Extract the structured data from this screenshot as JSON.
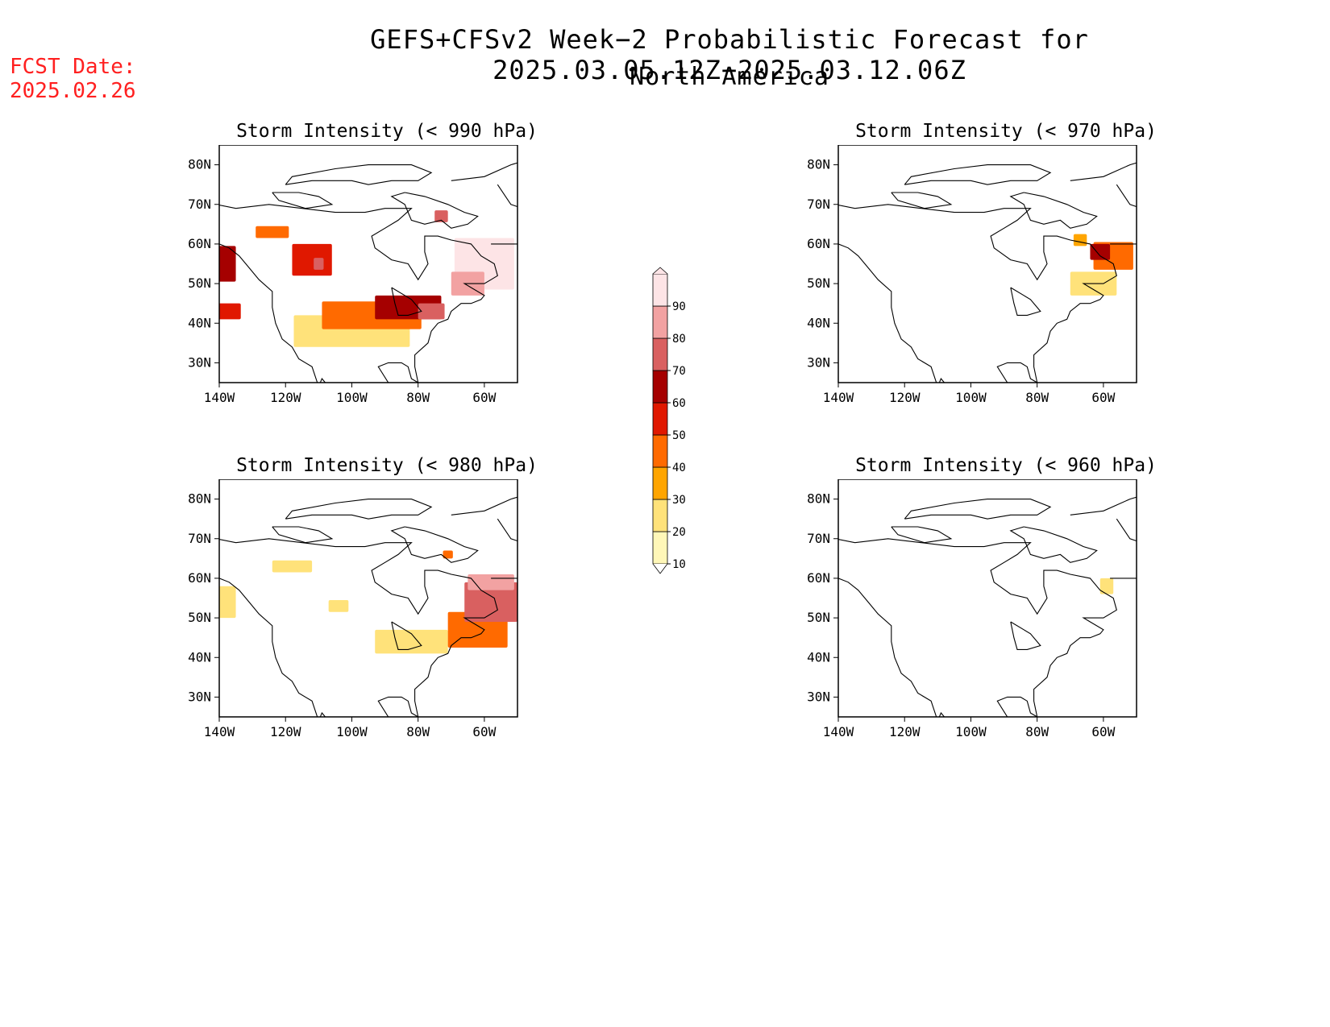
{
  "header": {
    "title": "GEFS+CFSv2 Week−2 Probabilistic Forecast for 2025.03.05.12Z−2025.03.12.06Z",
    "region": "North America",
    "fcst_label": "FCST Date:",
    "fcst_date": "2025.02.26"
  },
  "axes": {
    "lat_labels": [
      "80N",
      "70N",
      "60N",
      "50N",
      "40N",
      "30N"
    ],
    "lat_values": [
      80,
      70,
      60,
      50,
      40,
      30
    ],
    "lon_labels": [
      "140W",
      "120W",
      "100W",
      "80W",
      "60W"
    ],
    "lon_values": [
      -140,
      -120,
      -100,
      -80,
      -60
    ],
    "lon_range": [
      -140,
      -50
    ],
    "lat_range": [
      25,
      85
    ]
  },
  "colorbar": {
    "levels": [
      "10",
      "20",
      "30",
      "40",
      "50",
      "60",
      "70",
      "80",
      "90"
    ],
    "colors": [
      "#fff7b8",
      "#ffe27a",
      "#ffa500",
      "#ff6a00",
      "#e01800",
      "#a50000",
      "#d96060",
      "#f2a2a2",
      "#fde4e6"
    ]
  },
  "panels": [
    {
      "id": "p990",
      "title": "Storm Intensity (< 990 hPa)",
      "regions": [
        {
          "level": 5,
          "lon": -139,
          "lat": 55,
          "w": 8,
          "h": 9
        },
        {
          "level": 4,
          "lon": -137,
          "lat": 43,
          "w": 7,
          "h": 4
        },
        {
          "level": 3,
          "lon": -124,
          "lat": 63,
          "w": 10,
          "h": 3
        },
        {
          "level": 4,
          "lon": -112,
          "lat": 56,
          "w": 12,
          "h": 8
        },
        {
          "level": 6,
          "lon": -110,
          "lat": 55,
          "w": 3,
          "h": 3
        },
        {
          "level": 1,
          "lon": -100,
          "lat": 38,
          "w": 35,
          "h": 8
        },
        {
          "level": 3,
          "lon": -94,
          "lat": 42,
          "w": 30,
          "h": 7
        },
        {
          "level": 5,
          "lon": -83,
          "lat": 44,
          "w": 20,
          "h": 6
        },
        {
          "level": 6,
          "lon": -76,
          "lat": 43,
          "w": 8,
          "h": 4
        },
        {
          "level": 8,
          "lon": -60,
          "lat": 55,
          "w": 18,
          "h": 13
        },
        {
          "level": 7,
          "lon": -65,
          "lat": 50,
          "w": 10,
          "h": 6
        },
        {
          "level": 6,
          "lon": -73,
          "lat": 67,
          "w": 4,
          "h": 3
        }
      ]
    },
    {
      "id": "p970",
      "title": "Storm Intensity (< 970 hPa)",
      "regions": [
        {
          "level": 3,
          "lon": -57,
          "lat": 57,
          "w": 12,
          "h": 7
        },
        {
          "level": 5,
          "lon": -61,
          "lat": 58,
          "w": 6,
          "h": 4
        },
        {
          "level": 1,
          "lon": -63,
          "lat": 50,
          "w": 14,
          "h": 6
        },
        {
          "level": 2,
          "lon": -67,
          "lat": 61,
          "w": 4,
          "h": 3
        }
      ]
    },
    {
      "id": "p980",
      "title": "Storm Intensity (< 980 hPa)",
      "regions": [
        {
          "level": 1,
          "lon": -138,
          "lat": 54,
          "w": 6,
          "h": 8
        },
        {
          "level": 1,
          "lon": -118,
          "lat": 63,
          "w": 12,
          "h": 3
        },
        {
          "level": 1,
          "lon": -104,
          "lat": 53,
          "w": 6,
          "h": 3
        },
        {
          "level": 1,
          "lon": -82,
          "lat": 44,
          "w": 22,
          "h": 6
        },
        {
          "level": 3,
          "lon": -62,
          "lat": 47,
          "w": 18,
          "h": 9
        },
        {
          "level": 6,
          "lon": -58,
          "lat": 54,
          "w": 16,
          "h": 10
        },
        {
          "level": 7,
          "lon": -58,
          "lat": 59,
          "w": 14,
          "h": 4
        },
        {
          "level": 3,
          "lon": -71,
          "lat": 66,
          "w": 3,
          "h": 2
        }
      ]
    },
    {
      "id": "p960",
      "title": "Storm Intensity (< 960 hPa)",
      "regions": [
        {
          "level": 1,
          "lon": -59,
          "lat": 58,
          "w": 4,
          "h": 4
        }
      ]
    }
  ]
}
